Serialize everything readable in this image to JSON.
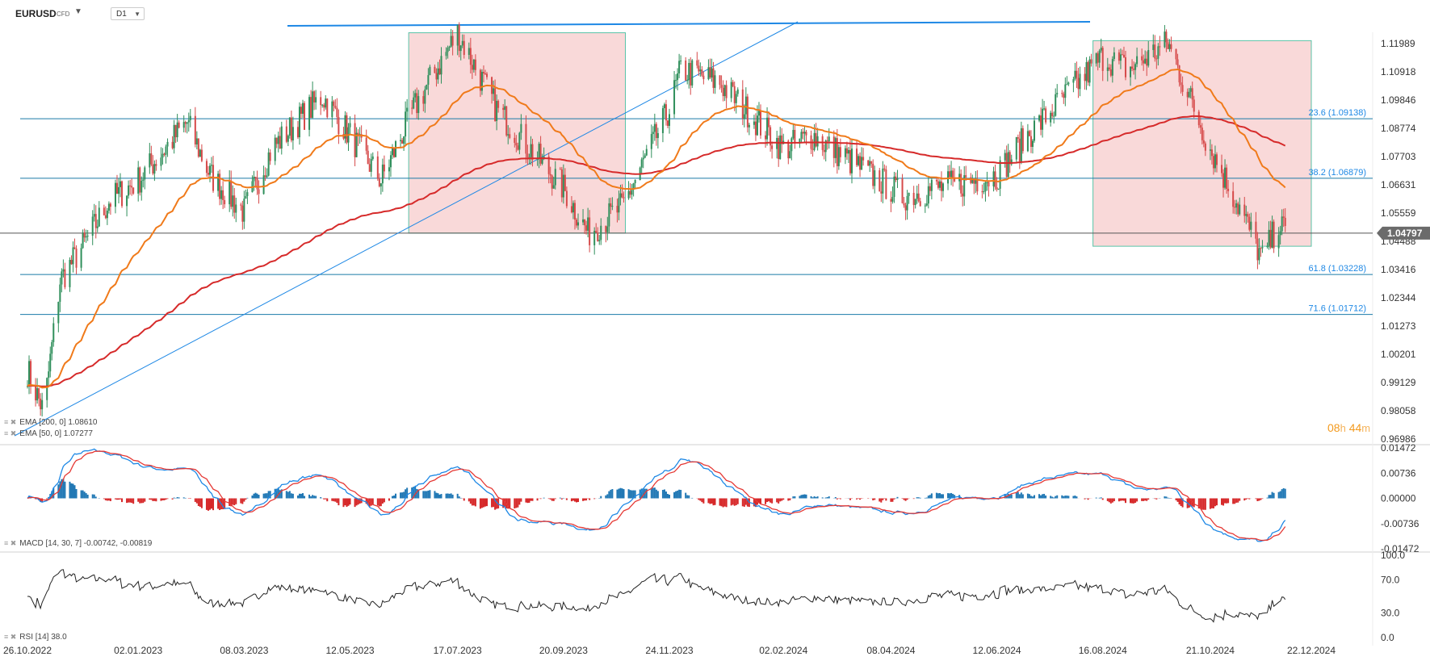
{
  "header": {
    "symbol": "EURUSD",
    "instrument_type": "CFD",
    "timeframe": "D1"
  },
  "countdown": {
    "hours": "08",
    "hours_unit": "h",
    "minutes": "44",
    "minutes_unit": "m"
  },
  "indicator_labels": {
    "ema200": "EMA [200, 0] 1.08610",
    "ema50": "EMA [50, 0] 1.07277",
    "macd": "MACD [14, 30, 7] -0.00742, -0.00819",
    "rsi": "RSI [14] 38.0"
  },
  "colors": {
    "bull": "#2f8f5b",
    "bear": "#d64a4a",
    "ema50": "#f07a1a",
    "ema200": "#d62a2a",
    "trend": "#1e88e5",
    "fib": "#1a7aa8",
    "zone_fill": "#f6c9c9",
    "zone_border": "#59c4a8",
    "macd_pos": "#1f77b4",
    "macd_neg": "#d62728",
    "price_tag": "#6b6b6b"
  },
  "chart_data": {
    "type": "candlestick",
    "symbol": "EURUSD",
    "timeframe": "D1",
    "x_tick_labels": [
      "26.10.2022",
      "02.01.2023",
      "08.03.2023",
      "12.05.2023",
      "17.07.2023",
      "20.09.2023",
      "24.11.2023",
      "02.02.2024",
      "08.04.2024",
      "12.06.2024",
      "16.08.2024",
      "21.10.2024",
      "22.12.2024"
    ],
    "x_range": [
      "26.10.2022",
      "22.12.2024"
    ],
    "price_axis": {
      "ticks": [
        "1.11989",
        "1.10918",
        "1.09846",
        "1.08774",
        "1.07703",
        "1.06631",
        "1.05559",
        "1.04488",
        "1.03416",
        "1.02344",
        "1.01273",
        "1.00201",
        "0.99129",
        "0.98058",
        "0.96986"
      ],
      "range": [
        0.96986,
        1.12
      ]
    },
    "current_price": "1.04797",
    "fibonacci_levels": [
      {
        "label": "23.6 (1.09138)",
        "price": 1.09138
      },
      {
        "label": "38.2 (1.06879)",
        "price": 1.06879
      },
      {
        "label": "61.8 (1.03228)",
        "price": 1.03228
      },
      {
        "label": "71.6 (1.01712)",
        "price": 1.01712
      }
    ],
    "ema200_last": 1.0861,
    "ema50_last": 1.07277,
    "close_path": [
      [
        "26.10.2022",
        0.996
      ],
      [
        "05.11.2022",
        0.98
      ],
      [
        "15.11.2022",
        1.03
      ],
      [
        "01.12.2022",
        1.045
      ],
      [
        "15.12.2022",
        1.06
      ],
      [
        "02.01.2023",
        1.068
      ],
      [
        "01.02.2023",
        1.09
      ],
      [
        "15.02.2023",
        1.07
      ],
      [
        "08.03.2023",
        1.056
      ],
      [
        "25.03.2023",
        1.08
      ],
      [
        "25.04.2023",
        1.1
      ],
      [
        "12.05.2023",
        1.085
      ],
      [
        "31.05.2023",
        1.068
      ],
      [
        "20.06.2023",
        1.095
      ],
      [
        "17.07.2023",
        1.124
      ],
      [
        "10.08.2023",
        1.095
      ],
      [
        "20.09.2023",
        1.065
      ],
      [
        "05.10.2023",
        1.048
      ],
      [
        "26.10.2023",
        1.058
      ],
      [
        "24.11.2023",
        1.095
      ],
      [
        "01.12.2023",
        1.11
      ],
      [
        "25.12.2023",
        1.105
      ],
      [
        "02.02.2024",
        1.08
      ],
      [
        "20.02.2024",
        1.085
      ],
      [
        "08.04.2024",
        1.065
      ],
      [
        "15.04.2024",
        1.062
      ],
      [
        "12.06.2024",
        1.07
      ],
      [
        "01.07.2024",
        1.085
      ],
      [
        "16.08.2024",
        1.115
      ],
      [
        "01.09.2024",
        1.11
      ],
      [
        "25.09.2024",
        1.12
      ],
      [
        "21.10.2024",
        1.08
      ],
      [
        "10.11.2024",
        1.055
      ],
      [
        "22.11.2024",
        1.038
      ],
      [
        "02.12.2024",
        1.052
      ],
      [
        "06.12.2024",
        1.048
      ]
    ],
    "macd_axis": {
      "ticks": [
        "0.01472",
        "0.00736",
        "0.00000",
        "-0.00736",
        "-0.01472"
      ],
      "range": [
        -0.01472,
        0.01472
      ]
    },
    "macd_last": {
      "macd": -0.00742,
      "signal": -0.00819
    },
    "rsi_axis": {
      "ticks": [
        "100.0",
        "70.0",
        "30.0",
        "0.0"
      ],
      "range": [
        0,
        100
      ]
    },
    "rsi_last": 38.0
  }
}
